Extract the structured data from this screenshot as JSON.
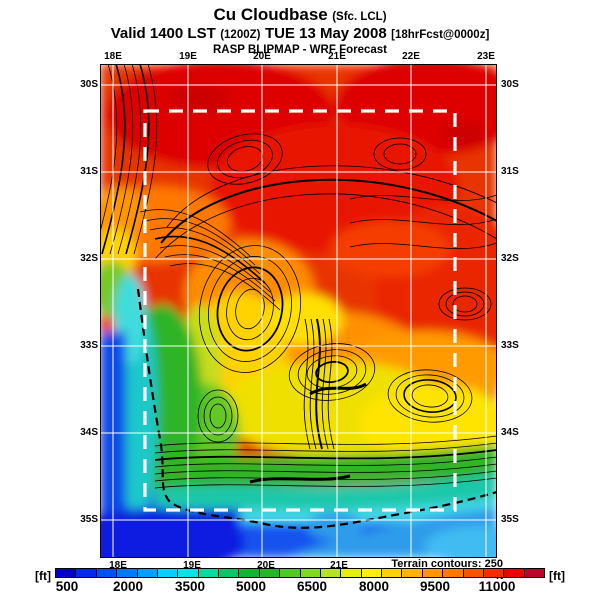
{
  "title": {
    "main": "Cu Cloudbase",
    "qualifier": "(Sfc. LCL)"
  },
  "valid_line": {
    "prefix": "Valid 1400 LST",
    "zulu": "(1200Z)",
    "date": "TUE 13 May 2008",
    "fcst": "[18hrFcst@0000z]"
  },
  "model_line": "RASP BLIPMAP - WRF Forecast",
  "map": {
    "lon_labels_top": [
      "18E",
      "19E",
      "20E",
      "21E",
      "22E",
      "23E"
    ],
    "lon_labels_bottom": [
      "18E",
      "19E",
      "20E",
      "21E"
    ],
    "lat_labels_left": [
      "30S",
      "31S",
      "32S",
      "33S",
      "34S",
      "35S"
    ],
    "lat_labels_right": [
      "30S",
      "31S",
      "32S",
      "33S",
      "34S",
      "35S"
    ],
    "terrain_note": "Terrain contours: 250 ft"
  },
  "colorbar": {
    "unit_left": "[ft]",
    "unit_right": "[ft]",
    "tick_labels": [
      "500",
      "2000",
      "3500",
      "5000",
      "6500",
      "8000",
      "9500",
      "11000"
    ],
    "segment_colors": [
      "#0000C8",
      "#0028F0",
      "#0050FF",
      "#0078FF",
      "#00A0FF",
      "#00D2FF",
      "#00E6E6",
      "#00DCA0",
      "#00C864",
      "#14B432",
      "#28B428",
      "#50C828",
      "#82D728",
      "#B4E61E",
      "#E6F000",
      "#FFF000",
      "#FFD200",
      "#FFB400",
      "#FF9600",
      "#FF7800",
      "#FF5000",
      "#FF2800",
      "#F00000",
      "#C00028"
    ]
  },
  "chart_data": {
    "type": "heatmap",
    "title": "Cu Cloudbase (Sfc. LCL)",
    "valid": "1400 LST (1200Z) TUE 13 May 2008 [18hrFcst@0000z]",
    "model": "RASP BLIPMAP - WRF Forecast",
    "units": "ft",
    "scale_ticks": [
      500,
      2000,
      3500,
      5000,
      6500,
      8000,
      9500,
      11000
    ],
    "scale_range": [
      500,
      11000
    ],
    "lon_ticks": [
      "18E",
      "19E",
      "20E",
      "21E",
      "22E",
      "23E"
    ],
    "lat_ticks": [
      "30S",
      "31S",
      "32S",
      "33S",
      "34S",
      "35S"
    ],
    "terrain_contour_interval_ft": 250,
    "legend_position": "bottom"
  }
}
